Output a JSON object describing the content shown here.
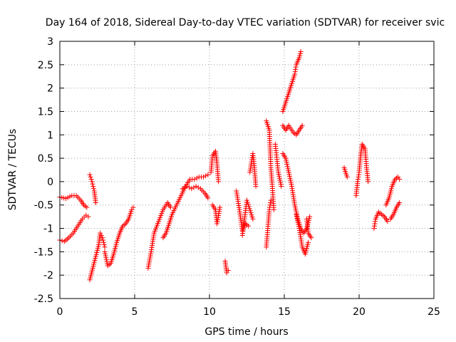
{
  "chart_data": {
    "type": "scatter",
    "title": "Day 164 of 2018, Sidereal Day-to-day VTEC variation (SDTVAR) for receiver svic",
    "xlabel": "GPS time / hours",
    "ylabel": "SDTVAR / TECUs",
    "xlim": [
      0,
      25
    ],
    "ylim": [
      -2.5,
      3
    ],
    "xticks": [
      0,
      5,
      10,
      15,
      20,
      25
    ],
    "yticks": [
      -2.5,
      -2,
      -1.5,
      -1,
      -0.5,
      0,
      0.5,
      1,
      1.5,
      2,
      2.5,
      3
    ],
    "grid": true,
    "marker": "+",
    "colors": {
      "series": "#ff0000",
      "grid": "#a0a0a0",
      "axis": "#000000"
    },
    "series": [
      {
        "name": "SDTVAR",
        "segments": [
          [
            [
              0.0,
              -0.33
            ],
            [
              0.4,
              -0.36
            ],
            [
              0.8,
              -0.3
            ],
            [
              1.1,
              -0.3
            ],
            [
              1.4,
              -0.4
            ],
            [
              1.6,
              -0.5
            ],
            [
              1.8,
              -0.55
            ]
          ],
          [
            [
              0.0,
              -1.25
            ],
            [
              0.3,
              -1.28
            ],
            [
              0.6,
              -1.2
            ],
            [
              0.9,
              -1.1
            ],
            [
              1.2,
              -0.95
            ],
            [
              1.5,
              -0.8
            ],
            [
              1.75,
              -0.72
            ],
            [
              1.9,
              -0.75
            ]
          ],
          [
            [
              2.0,
              0.15
            ],
            [
              2.15,
              0.0
            ],
            [
              2.3,
              -0.2
            ],
            [
              2.4,
              -0.45
            ]
          ],
          [
            [
              2.0,
              -2.1
            ],
            [
              2.2,
              -1.85
            ],
            [
              2.4,
              -1.6
            ],
            [
              2.6,
              -1.35
            ],
            [
              2.7,
              -1.1
            ],
            [
              2.85,
              -1.2
            ],
            [
              3.0,
              -1.4
            ]
          ],
          [
            [
              3.0,
              -1.5
            ],
            [
              3.2,
              -1.8
            ],
            [
              3.4,
              -1.75
            ],
            [
              3.6,
              -1.55
            ],
            [
              3.8,
              -1.3
            ],
            [
              4.0,
              -1.1
            ],
            [
              4.2,
              -0.95
            ],
            [
              4.4,
              -0.9
            ],
            [
              4.6,
              -0.8
            ],
            [
              4.8,
              -0.6
            ],
            [
              4.9,
              -0.55
            ]
          ],
          [
            [
              5.9,
              -1.85
            ],
            [
              6.1,
              -1.5
            ],
            [
              6.3,
              -1.1
            ],
            [
              6.6,
              -0.85
            ],
            [
              6.9,
              -0.6
            ],
            [
              7.2,
              -0.45
            ],
            [
              7.4,
              -0.55
            ]
          ],
          [
            [
              6.9,
              -1.2
            ],
            [
              7.1,
              -1.1
            ],
            [
              7.3,
              -0.9
            ],
            [
              7.5,
              -0.7
            ],
            [
              7.8,
              -0.5
            ],
            [
              8.1,
              -0.3
            ],
            [
              8.4,
              -0.1
            ],
            [
              8.7,
              0.05
            ],
            [
              9.0,
              0.05
            ],
            [
              9.3,
              0.1
            ],
            [
              9.6,
              0.1
            ],
            [
              9.9,
              0.15
            ]
          ],
          [
            [
              8.2,
              -0.15
            ],
            [
              8.5,
              -0.1
            ],
            [
              8.8,
              -0.15
            ],
            [
              9.1,
              -0.1
            ],
            [
              9.4,
              -0.15
            ],
            [
              9.7,
              -0.25
            ],
            [
              9.9,
              -0.35
            ]
          ],
          [
            [
              10.1,
              0.2
            ],
            [
              10.2,
              0.55
            ],
            [
              10.4,
              0.65
            ],
            [
              10.5,
              0.4
            ],
            [
              10.6,
              0.0
            ]
          ],
          [
            [
              10.2,
              -0.5
            ],
            [
              10.4,
              -0.6
            ],
            [
              10.5,
              -0.9
            ],
            [
              10.7,
              -0.55
            ]
          ],
          [
            [
              11.05,
              -1.7
            ],
            [
              11.15,
              -1.95
            ],
            [
              11.25,
              -1.9
            ]
          ],
          [
            [
              11.8,
              -0.2
            ],
            [
              12.0,
              -0.6
            ],
            [
              12.2,
              -1.05
            ],
            [
              12.4,
              -0.9
            ],
            [
              12.6,
              -0.95
            ]
          ],
          [
            [
              12.2,
              -1.15
            ],
            [
              12.5,
              -0.4
            ],
            [
              12.9,
              -0.8
            ]
          ],
          [
            [
              12.7,
              0.2
            ],
            [
              12.9,
              0.6
            ],
            [
              13.0,
              0.3
            ],
            [
              13.1,
              -0.1
            ]
          ],
          [
            [
              13.8,
              1.3
            ],
            [
              14.0,
              1.1
            ],
            [
              14.1,
              0.3
            ],
            [
              14.2,
              -0.1
            ],
            [
              14.3,
              -0.6
            ]
          ],
          [
            [
              13.8,
              -1.4
            ],
            [
              13.9,
              -1.0
            ],
            [
              14.0,
              -0.6
            ],
            [
              14.1,
              -0.4
            ]
          ],
          [
            [
              14.4,
              0.8
            ],
            [
              14.6,
              0.2
            ],
            [
              14.8,
              -0.1
            ]
          ],
          [
            [
              14.9,
              1.5
            ],
            [
              15.1,
              1.7
            ],
            [
              15.3,
              1.9
            ],
            [
              15.5,
              2.1
            ],
            [
              15.7,
              2.3
            ],
            [
              15.8,
              2.5
            ],
            [
              16.0,
              2.65
            ],
            [
              16.1,
              2.78
            ]
          ],
          [
            [
              14.9,
              1.2
            ],
            [
              15.1,
              1.1
            ],
            [
              15.3,
              1.2
            ],
            [
              15.6,
              1.05
            ],
            [
              15.8,
              1.0
            ],
            [
              16.0,
              1.1
            ],
            [
              16.2,
              1.2
            ]
          ],
          [
            [
              14.9,
              0.6
            ],
            [
              15.1,
              0.5
            ],
            [
              15.3,
              0.2
            ],
            [
              15.5,
              -0.1
            ],
            [
              15.7,
              -0.5
            ],
            [
              15.9,
              -0.8
            ],
            [
              16.1,
              -1.0
            ],
            [
              16.3,
              -1.1
            ],
            [
              16.5,
              -1.0
            ],
            [
              16.7,
              -0.75
            ]
          ],
          [
            [
              15.8,
              -0.7
            ],
            [
              16.0,
              -1.0
            ],
            [
              16.2,
              -1.4
            ],
            [
              16.4,
              -1.55
            ],
            [
              16.6,
              -1.3
            ]
          ],
          [
            [
              16.5,
              -0.8
            ],
            [
              16.6,
              -1.1
            ],
            [
              16.8,
              -1.2
            ]
          ],
          [
            [
              19.0,
              0.3
            ],
            [
              19.2,
              0.1
            ]
          ],
          [
            [
              19.8,
              -0.3
            ],
            [
              19.9,
              0.0
            ],
            [
              20.0,
              0.2
            ],
            [
              20.1,
              0.55
            ],
            [
              20.2,
              0.8
            ],
            [
              20.4,
              0.7
            ],
            [
              20.5,
              0.3
            ],
            [
              20.6,
              0.0
            ]
          ],
          [
            [
              21.0,
              -1.0
            ],
            [
              21.1,
              -0.8
            ],
            [
              21.3,
              -0.65
            ],
            [
              21.5,
              -0.7
            ],
            [
              21.7,
              -0.75
            ],
            [
              21.9,
              -0.85
            ]
          ],
          [
            [
              21.8,
              -0.5
            ],
            [
              22.0,
              -0.35
            ],
            [
              22.2,
              -0.1
            ],
            [
              22.4,
              0.05
            ],
            [
              22.6,
              0.1
            ],
            [
              22.7,
              0.05
            ]
          ],
          [
            [
              22.1,
              -0.8
            ],
            [
              22.3,
              -0.7
            ],
            [
              22.5,
              -0.55
            ],
            [
              22.7,
              -0.45
            ]
          ]
        ]
      }
    ]
  }
}
